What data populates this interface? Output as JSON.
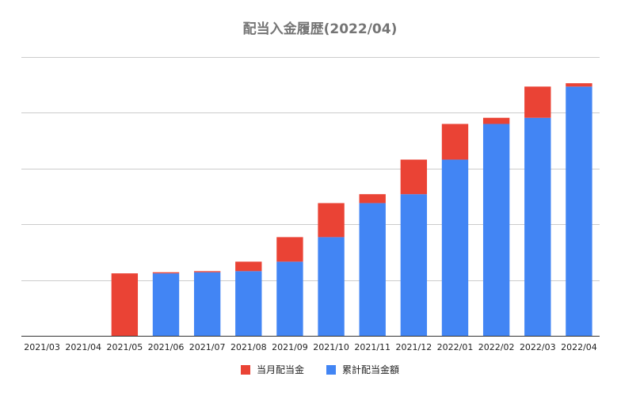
{
  "chart_data": {
    "type": "bar",
    "stacked": true,
    "title": "配当入金履歴(2022/04)",
    "categories": [
      "2021/03",
      "2021/04",
      "2021/05",
      "2021/06",
      "2021/07",
      "2021/08",
      "2021/09",
      "2021/10",
      "2021/11",
      "2021/12",
      "2022/01",
      "2022/02",
      "2022/03",
      "2022/04"
    ],
    "series": [
      {
        "name": "累計配当金額",
        "color": "#4285f4",
        "values": [
          0,
          0,
          0,
          1.12,
          1.14,
          1.16,
          1.33,
          1.77,
          2.38,
          2.54,
          3.16,
          3.8,
          3.91,
          4.47
        ]
      },
      {
        "name": "当月配当金",
        "color": "#ea4335",
        "values": [
          0,
          0,
          1.12,
          0.02,
          0.02,
          0.17,
          0.44,
          0.61,
          0.16,
          0.62,
          0.64,
          0.11,
          0.56,
          0.06
        ]
      }
    ],
    "legend_order": [
      1,
      0
    ],
    "ylim": [
      0,
      5
    ],
    "gridlines": 5,
    "y_tick_labels": "hidden",
    "legend_position": "bottom"
  }
}
